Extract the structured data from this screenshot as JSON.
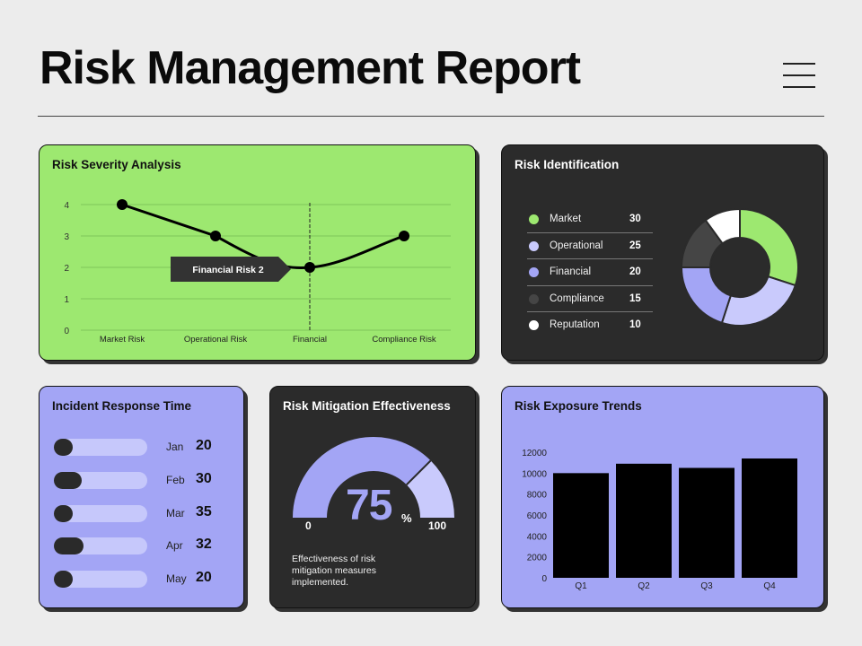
{
  "header": {
    "title": "Risk Management Report"
  },
  "severity": {
    "title": "Risk Severity Analysis",
    "tooltip": "Financial Risk 2"
  },
  "identification": {
    "title": "Risk Identification",
    "items": [
      {
        "label": "Market",
        "value": "30",
        "color": "#9de870"
      },
      {
        "label": "Operational",
        "value": "25",
        "color": "#c9cafc"
      },
      {
        "label": "Financial",
        "value": "20",
        "color": "#a3a5f5"
      },
      {
        "label": "Compliance",
        "value": "15",
        "color": "#454545"
      },
      {
        "label": "Reputation",
        "value": "10",
        "color": "#ffffff"
      }
    ]
  },
  "incident": {
    "title": "Incident Response Time",
    "rows": [
      {
        "month": "Jan",
        "value": "20",
        "fill": 0.2
      },
      {
        "month": "Feb",
        "value": "30",
        "fill": 0.3
      },
      {
        "month": "Mar",
        "value": "35",
        "fill": 0.2
      },
      {
        "month": "Apr",
        "value": "32",
        "fill": 0.32
      },
      {
        "month": "May",
        "value": "20",
        "fill": 0.2
      }
    ]
  },
  "mitigation": {
    "title": "Risk Mitigation Effectiveness",
    "value": "75",
    "unit": "%",
    "min": "0",
    "max": "100",
    "description": "Effectiveness of risk mitigation measures implemented."
  },
  "exposure": {
    "title": "Risk Exposure Trends"
  },
  "colors": {
    "green": "#9de870",
    "dark": "#2b2b2b",
    "purple": "#a3a5f5",
    "light_purple": "#c9cafc"
  },
  "chart_data": [
    {
      "type": "line",
      "title": "Risk Severity Analysis",
      "categories": [
        "Market Risk",
        "Operational Risk",
        "Financial",
        "Compliance Risk"
      ],
      "values": [
        4,
        3,
        2,
        3
      ],
      "ylim": [
        0,
        4
      ],
      "yticks": [
        0,
        1,
        2,
        3,
        4
      ],
      "grid": true
    },
    {
      "type": "pie",
      "title": "Risk Identification",
      "labels": [
        "Market",
        "Operational",
        "Financial",
        "Compliance",
        "Reputation"
      ],
      "values": [
        30,
        25,
        20,
        15,
        10
      ]
    },
    {
      "type": "bar",
      "title": "Incident Response Time",
      "categories": [
        "Jan",
        "Feb",
        "Mar",
        "Apr",
        "May"
      ],
      "values": [
        20,
        30,
        35,
        32,
        20
      ]
    },
    {
      "type": "pie",
      "title": "Risk Mitigation Effectiveness",
      "labels": [
        "Effectiveness"
      ],
      "values": [
        75
      ],
      "range": [
        0,
        100
      ]
    },
    {
      "type": "bar",
      "title": "Risk Exposure Trends",
      "categories": [
        "Q1",
        "Q2",
        "Q3",
        "Q4"
      ],
      "values": [
        10000,
        10900,
        10500,
        11400
      ],
      "ylim": [
        0,
        12000
      ],
      "yticks": [
        0,
        2000,
        4000,
        6000,
        8000,
        10000,
        12000
      ]
    }
  ]
}
